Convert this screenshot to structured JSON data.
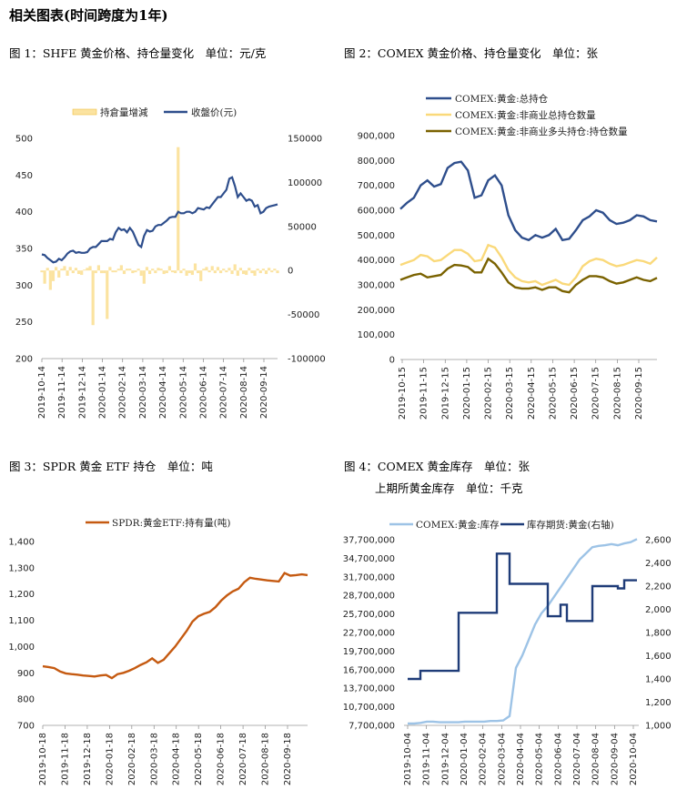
{
  "page_title": "相关图表(时间跨度为1年)",
  "figures": {
    "fig1_title": "图 1：SHFE 黄金价格、持仓量变化　单位：元/克",
    "fig2_title": "图 2：COMEX 黄金价格、持仓量变化　单位：张",
    "fig3_title": "图 3：SPDR 黄金 ETF 持仓　单位：吨",
    "fig4_title_line1": "图 4：COMEX 黄金库存　单位：张",
    "fig4_title_line2": "上期所黄金库存　单位：千克"
  },
  "colors": {
    "dark_blue": "#2e4e8c",
    "light_yellow": "#fad97a",
    "olive": "#7a6200",
    "orange": "#c55a11",
    "light_blue": "#9dc3e6",
    "navy": "#1f3c78",
    "bar_yellow": "#fbe3a0"
  },
  "chart_data": [
    {
      "type": "line",
      "id": "shfe",
      "legend": [
        "持倉量增減",
        "收盤价(元)"
      ],
      "x_tick_labels": [
        "2019-10-14",
        "2019-11-14",
        "2019-12-14",
        "2020-01-14",
        "2020-02-14",
        "2020-03-14",
        "2020-04-14",
        "2020-05-14",
        "2020-06-14",
        "2020-07-14",
        "2020-08-14",
        "2020-09-14"
      ],
      "y_left": {
        "ticks": [
          "500",
          "450",
          "400",
          "350",
          "300",
          "250",
          "200"
        ],
        "ylim": [
          200,
          500
        ]
      },
      "y_right": {
        "ticks": [
          "150000",
          "100000",
          "50000",
          "0",
          "-50000",
          "-100000"
        ],
        "ylim": [
          -100000,
          150000
        ]
      },
      "series": [
        {
          "name": "收盤价(元)",
          "axis": "left",
          "values": [
            342,
            341,
            337,
            334,
            331,
            332,
            336,
            334,
            338,
            343,
            346,
            347,
            344,
            345,
            344,
            344,
            345,
            350,
            352,
            352,
            356,
            360,
            360,
            360,
            363,
            362,
            372,
            378,
            375,
            376,
            372,
            378,
            373,
            364,
            355,
            352,
            367,
            375,
            373,
            374,
            380,
            382,
            382,
            385,
            388,
            392,
            393,
            393,
            400,
            398,
            398,
            400,
            400,
            398,
            400,
            405,
            404,
            403,
            406,
            405,
            410,
            415,
            420,
            420,
            425,
            430,
            445,
            447,
            435,
            420,
            425,
            420,
            415,
            417,
            415,
            407,
            409,
            398,
            400,
            405,
            407,
            408,
            409,
            410
          ]
        },
        {
          "name": "持倉量增減",
          "axis": "right",
          "type": "bar",
          "values": [
            -2000,
            -15000,
            3000,
            -22000,
            -12000,
            4000,
            -8000,
            2000,
            5000,
            -6000,
            4000,
            -3000,
            3000,
            -4000,
            -5000,
            1000,
            3000,
            5000,
            -62000,
            -3000,
            6000,
            -3000,
            -3000,
            -55000,
            4000,
            -2000,
            -2000,
            2000,
            6000,
            -4000,
            2000,
            2000,
            -3000,
            -2000,
            2000,
            -6000,
            -15000,
            4000,
            -4000,
            2000,
            -3000,
            3000,
            2000,
            -4000,
            -3000,
            5000,
            -2000,
            -3000,
            140000,
            -3000,
            2000,
            -6000,
            -3000,
            -5000,
            8000,
            -3000,
            -12000,
            2000,
            4000,
            -2000,
            5000,
            -3000,
            4000,
            -3000,
            2000,
            -2000,
            3000,
            -4000,
            7000,
            -6000,
            3000,
            -4000,
            -5000,
            3000,
            -3000,
            -6000,
            2000,
            -3000,
            2000,
            -4000,
            3000,
            -2000,
            2000,
            -3000
          ]
        }
      ]
    },
    {
      "type": "line",
      "id": "comex",
      "x_tick_labels": [
        "2019-10-15",
        "2019-11-15",
        "2019-12-15",
        "2020-01-15",
        "2020-02-15",
        "2020-03-15",
        "2020-04-15",
        "2020-05-15",
        "2020-06-15",
        "2020-07-15",
        "2020-08-15",
        "2020-09-15"
      ],
      "y_ticks": [
        "900,000",
        "800,000",
        "700,000",
        "600,000",
        "500,000",
        "400,000",
        "300,000",
        "200,000",
        "100,000",
        "0"
      ],
      "ylim": [
        0,
        900000
      ],
      "series": [
        {
          "name": "COMEX:黄金:总持仓",
          "values": [
            605000,
            630000,
            650000,
            700000,
            720000,
            695000,
            705000,
            770000,
            790000,
            795000,
            760000,
            650000,
            660000,
            720000,
            740000,
            700000,
            580000,
            520000,
            490000,
            480000,
            500000,
            490000,
            500000,
            525000,
            480000,
            485000,
            520000,
            560000,
            575000,
            600000,
            590000,
            560000,
            545000,
            550000,
            560000,
            580000,
            575000,
            560000,
            555000
          ]
        },
        {
          "name": "COMEX:黄金:非商业总持仓数量",
          "values": [
            380000,
            390000,
            400000,
            420000,
            415000,
            395000,
            400000,
            420000,
            440000,
            440000,
            425000,
            395000,
            400000,
            460000,
            450000,
            410000,
            360000,
            330000,
            315000,
            310000,
            315000,
            300000,
            310000,
            320000,
            305000,
            300000,
            330000,
            375000,
            395000,
            405000,
            400000,
            385000,
            375000,
            380000,
            390000,
            400000,
            395000,
            385000,
            410000
          ]
        },
        {
          "name": "COMEX:黄金:非商业多头持仓:持仓数量",
          "values": [
            320000,
            330000,
            340000,
            345000,
            330000,
            335000,
            340000,
            365000,
            380000,
            378000,
            372000,
            350000,
            350000,
            405000,
            385000,
            350000,
            310000,
            290000,
            285000,
            285000,
            290000,
            280000,
            290000,
            290000,
            275000,
            270000,
            300000,
            320000,
            335000,
            335000,
            330000,
            315000,
            305000,
            310000,
            320000,
            330000,
            320000,
            315000,
            328000
          ]
        }
      ]
    },
    {
      "type": "line",
      "id": "spdr",
      "x_tick_labels": [
        "2019-10-18",
        "2019-11-18",
        "2019-12-18",
        "2020-01-18",
        "2020-02-18",
        "2020-03-18",
        "2020-04-18",
        "2020-05-18",
        "2020-06-18",
        "2020-07-18",
        "2020-08-18",
        "2020-09-18"
      ],
      "y_ticks": [
        "1,400",
        "1,300",
        "1,200",
        "1,100",
        "1,000",
        "900",
        "800",
        "700"
      ],
      "ylim": [
        700,
        1400
      ],
      "series": [
        {
          "name": "SPDR:黄金ETF:持有量(吨)",
          "values": [
            925,
            922,
            918,
            905,
            898,
            895,
            893,
            890,
            888,
            886,
            890,
            892,
            880,
            895,
            900,
            908,
            918,
            930,
            940,
            955,
            938,
            950,
            975,
            1000,
            1030,
            1060,
            1095,
            1115,
            1125,
            1132,
            1150,
            1175,
            1195,
            1210,
            1220,
            1245,
            1262,
            1258,
            1255,
            1252,
            1250,
            1248,
            1280,
            1270,
            1272,
            1275,
            1272
          ]
        }
      ]
    },
    {
      "type": "line",
      "id": "inventory",
      "x_tick_labels": [
        "2019-10-04",
        "2019-11-04",
        "2019-12-04",
        "2020-01-04",
        "2020-02-04",
        "2020-03-04",
        "2020-04-04",
        "2020-05-04",
        "2020-06-04",
        "2020-07-04",
        "2020-08-04",
        "2020-09-04",
        "2020-10-04"
      ],
      "y_left": {
        "ticks": [
          "37,700,000",
          "34,700,000",
          "31,700,000",
          "28,700,000",
          "25,700,000",
          "22,700,000",
          "19,700,000",
          "16,700,000",
          "13,700,000",
          "10,700,000",
          "7,700,000"
        ],
        "ylim": [
          7700000,
          37700000
        ]
      },
      "y_right": {
        "ticks": [
          "2,600",
          "2,400",
          "2,200",
          "2,000",
          "1,800",
          "1,600",
          "1,400",
          "1,200",
          "1,000"
        ],
        "ylim": [
          1000,
          2600
        ]
      },
      "series": [
        {
          "name": "COMEX:黄金:库存",
          "axis": "left",
          "values": [
            8000000,
            8000000,
            8100000,
            8300000,
            8300000,
            8200000,
            8200000,
            8200000,
            8200000,
            8300000,
            8300000,
            8300000,
            8300000,
            8400000,
            8400000,
            8500000,
            9200000,
            17000000,
            19000000,
            21500000,
            24000000,
            25800000,
            27000000,
            28500000,
            30000000,
            31500000,
            33000000,
            34500000,
            35500000,
            36500000,
            36700000,
            36800000,
            37000000,
            36800000,
            37100000,
            37300000,
            37800000
          ]
        },
        {
          "name": "库存期货:黄金(右轴)",
          "axis": "right",
          "values": [
            1400,
            1400,
            1470,
            1470,
            1470,
            1470,
            1470,
            1470,
            1970,
            1970,
            1970,
            1970,
            1970,
            1970,
            2480,
            2480,
            2220,
            2220,
            2220,
            2220,
            2220,
            2220,
            1940,
            1940,
            2040,
            1900,
            1900,
            1900,
            1900,
            2200,
            2200,
            2200,
            2200,
            2180,
            2250,
            2250,
            2250
          ]
        }
      ]
    }
  ]
}
